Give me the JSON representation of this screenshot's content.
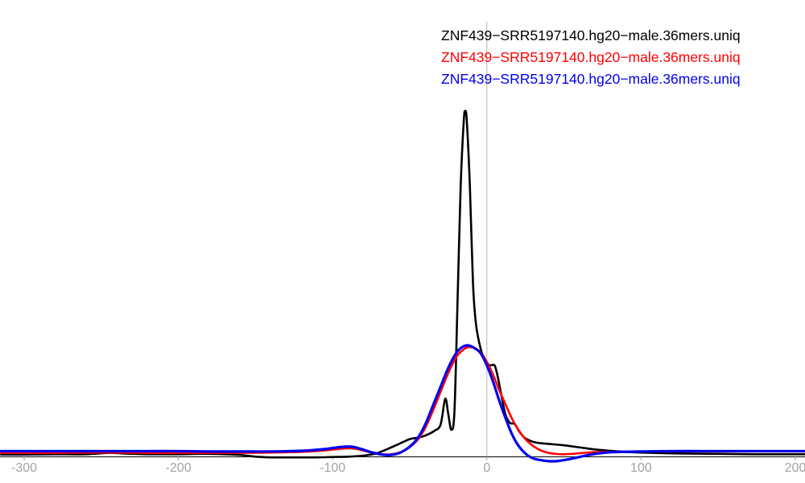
{
  "chart_data": {
    "type": "line",
    "title": "",
    "xlabel": "",
    "ylabel": "",
    "xlim": [
      -300,
      200
    ],
    "ylim": [
      0,
      1.05
    ],
    "y_axis_visible": false,
    "grid": false,
    "zero_line_x": 0,
    "x_ticks": [
      -300,
      -200,
      -100,
      0,
      100,
      200
    ],
    "x_tick_labels": [
      "-300",
      "-200",
      "-100",
      "0",
      "100",
      "200"
    ],
    "legend_position": "top-right",
    "note": "y values normalized so the black peak = 1.0; no y axis drawn in original",
    "colors": {
      "axis": "#000000",
      "zero_line": "#b3b3b3",
      "tick_label": "#a3a3a3"
    },
    "series": [
      {
        "name": "black-curve",
        "label": "ZNF439−SRR5197140.hg20−male.36mers.uniq",
        "color": "#000000",
        "stroke_width": 2.6,
        "points": [
          [
            -315,
            0.003
          ],
          [
            -300,
            0.003
          ],
          [
            -280,
            0.004
          ],
          [
            -260,
            0.004
          ],
          [
            -245,
            0.008
          ],
          [
            -235,
            0.006
          ],
          [
            -220,
            0.004
          ],
          [
            -200,
            0.004
          ],
          [
            -185,
            0.005
          ],
          [
            -170,
            0.004
          ],
          [
            -160,
            0.002
          ],
          [
            -150,
            -0.003
          ],
          [
            -140,
            -0.005
          ],
          [
            -125,
            -0.005
          ],
          [
            -110,
            -0.005
          ],
          [
            -100,
            -0.004
          ],
          [
            -90,
            -0.003
          ],
          [
            -80,
            0.0
          ],
          [
            -72,
            0.006
          ],
          [
            -65,
            0.018
          ],
          [
            -60,
            0.028
          ],
          [
            -55,
            0.038
          ],
          [
            -50,
            0.048
          ],
          [
            -45,
            0.052
          ],
          [
            -42,
            0.055
          ],
          [
            -38,
            0.062
          ],
          [
            -34,
            0.072
          ],
          [
            -30,
            0.09
          ],
          [
            -27,
            0.165
          ],
          [
            -25,
            0.12
          ],
          [
            -23,
            0.075
          ],
          [
            -21,
            0.13
          ],
          [
            -19,
            0.45
          ],
          [
            -17,
            0.78
          ],
          [
            -15,
            0.97
          ],
          [
            -14,
            1.0
          ],
          [
            -13,
            0.97
          ],
          [
            -11,
            0.78
          ],
          [
            -9,
            0.5
          ],
          [
            -7,
            0.38
          ],
          [
            -4,
            0.31
          ],
          [
            -1,
            0.275
          ],
          [
            2,
            0.262
          ],
          [
            5,
            0.262
          ],
          [
            7,
            0.23
          ],
          [
            9,
            0.185
          ],
          [
            12,
            0.12
          ],
          [
            15,
            0.095
          ],
          [
            18,
            0.092
          ],
          [
            21,
            0.07
          ],
          [
            25,
            0.05
          ],
          [
            30,
            0.04
          ],
          [
            35,
            0.036
          ],
          [
            40,
            0.034
          ],
          [
            50,
            0.03
          ],
          [
            60,
            0.024
          ],
          [
            70,
            0.018
          ],
          [
            80,
            0.014
          ],
          [
            90,
            0.011
          ],
          [
            100,
            0.009
          ],
          [
            115,
            0.007
          ],
          [
            130,
            0.006
          ],
          [
            150,
            0.005
          ],
          [
            175,
            0.004
          ],
          [
            200,
            0.004
          ],
          [
            210,
            0.004
          ]
        ]
      },
      {
        "name": "red-curve",
        "label": "ZNF439−SRR5197140.hg20−male.36mers.uniq",
        "color": "#ff0000",
        "stroke_width": 2.6,
        "points": [
          [
            -315,
            0.008
          ],
          [
            -300,
            0.008
          ],
          [
            -280,
            0.008
          ],
          [
            -260,
            0.009
          ],
          [
            -240,
            0.009
          ],
          [
            -220,
            0.008
          ],
          [
            -200,
            0.008
          ],
          [
            -180,
            0.008
          ],
          [
            -160,
            0.008
          ],
          [
            -140,
            0.009
          ],
          [
            -120,
            0.011
          ],
          [
            -105,
            0.015
          ],
          [
            -95,
            0.02
          ],
          [
            -88,
            0.021
          ],
          [
            -82,
            0.017
          ],
          [
            -75,
            0.009
          ],
          [
            -68,
            0.004
          ],
          [
            -62,
            0.004
          ],
          [
            -56,
            0.01
          ],
          [
            -50,
            0.025
          ],
          [
            -45,
            0.045
          ],
          [
            -40,
            0.08
          ],
          [
            -35,
            0.13
          ],
          [
            -30,
            0.185
          ],
          [
            -25,
            0.24
          ],
          [
            -20,
            0.285
          ],
          [
            -16,
            0.305
          ],
          [
            -12,
            0.315
          ],
          [
            -8,
            0.312
          ],
          [
            -4,
            0.3
          ],
          [
            0,
            0.272
          ],
          [
            4,
            0.235
          ],
          [
            8,
            0.19
          ],
          [
            12,
            0.15
          ],
          [
            16,
            0.11
          ],
          [
            20,
            0.078
          ],
          [
            25,
            0.048
          ],
          [
            30,
            0.028
          ],
          [
            35,
            0.015
          ],
          [
            40,
            0.008
          ],
          [
            45,
            0.005
          ],
          [
            50,
            0.004
          ],
          [
            55,
            0.005
          ],
          [
            60,
            0.007
          ],
          [
            70,
            0.01
          ],
          [
            80,
            0.011
          ],
          [
            100,
            0.012
          ],
          [
            120,
            0.012
          ],
          [
            140,
            0.012
          ],
          [
            160,
            0.012
          ],
          [
            180,
            0.012
          ],
          [
            200,
            0.012
          ],
          [
            210,
            0.012
          ]
        ]
      },
      {
        "name": "blue-curve",
        "label": "ZNF439−SRR5197140.hg20−male.36mers.uniq",
        "color": "#0000ee",
        "stroke_width": 3.2,
        "points": [
          [
            -315,
            0.013
          ],
          [
            -300,
            0.013
          ],
          [
            -280,
            0.013
          ],
          [
            -260,
            0.013
          ],
          [
            -240,
            0.013
          ],
          [
            -220,
            0.013
          ],
          [
            -200,
            0.013
          ],
          [
            -180,
            0.012
          ],
          [
            -160,
            0.012
          ],
          [
            -140,
            0.012
          ],
          [
            -120,
            0.014
          ],
          [
            -105,
            0.019
          ],
          [
            -95,
            0.025
          ],
          [
            -88,
            0.026
          ],
          [
            -82,
            0.02
          ],
          [
            -75,
            0.01
          ],
          [
            -68,
            0.003
          ],
          [
            -62,
            0.002
          ],
          [
            -56,
            0.009
          ],
          [
            -50,
            0.026
          ],
          [
            -45,
            0.05
          ],
          [
            -40,
            0.09
          ],
          [
            -35,
            0.145
          ],
          [
            -30,
            0.2
          ],
          [
            -25,
            0.255
          ],
          [
            -20,
            0.297
          ],
          [
            -16,
            0.315
          ],
          [
            -12,
            0.32
          ],
          [
            -8,
            0.312
          ],
          [
            -4,
            0.297
          ],
          [
            0,
            0.262
          ],
          [
            4,
            0.215
          ],
          [
            8,
            0.16
          ],
          [
            12,
            0.11
          ],
          [
            16,
            0.065
          ],
          [
            20,
            0.032
          ],
          [
            25,
            0.006
          ],
          [
            30,
            -0.008
          ],
          [
            35,
            -0.013
          ],
          [
            40,
            -0.016
          ],
          [
            45,
            -0.016
          ],
          [
            50,
            -0.013
          ],
          [
            55,
            -0.009
          ],
          [
            60,
            -0.004
          ],
          [
            65,
            0.001
          ],
          [
            70,
            0.005
          ],
          [
            80,
            0.01
          ],
          [
            100,
            0.012
          ],
          [
            120,
            0.013
          ],
          [
            140,
            0.013
          ],
          [
            160,
            0.013
          ],
          [
            180,
            0.013
          ],
          [
            200,
            0.013
          ],
          [
            210,
            0.013
          ]
        ]
      }
    ]
  }
}
